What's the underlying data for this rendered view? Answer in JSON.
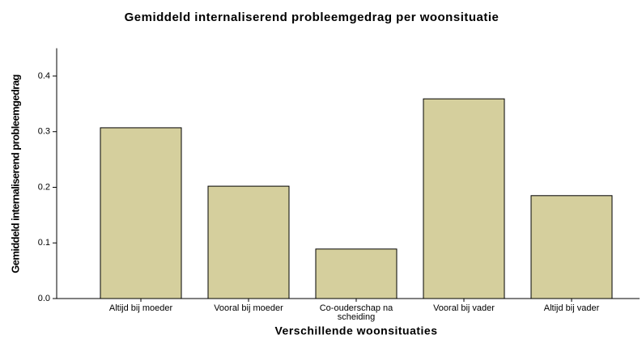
{
  "chart_data": {
    "type": "bar",
    "title": "Gemiddeld internaliserend probleemgedrag per woonsituatie",
    "x_label": "Verschillende woonsituaties",
    "y_label": "Gemiddeld internaliserend probleemgedrag",
    "categories": [
      "Altijd bij moeder",
      "Vooral bij moeder",
      "Co-ouderschap na scheiding",
      "Vooral bij vader",
      "Altijd bij vader"
    ],
    "values": [
      0.307,
      0.202,
      0.089,
      0.359,
      0.185
    ],
    "color": "#d5cf9d",
    "ylim": [
      0,
      0.45
    ],
    "yticks": [
      {
        "value": 0,
        "label": "0.0"
      },
      0.1,
      0.2,
      0.3,
      0.4
    ],
    "grid": false
  }
}
